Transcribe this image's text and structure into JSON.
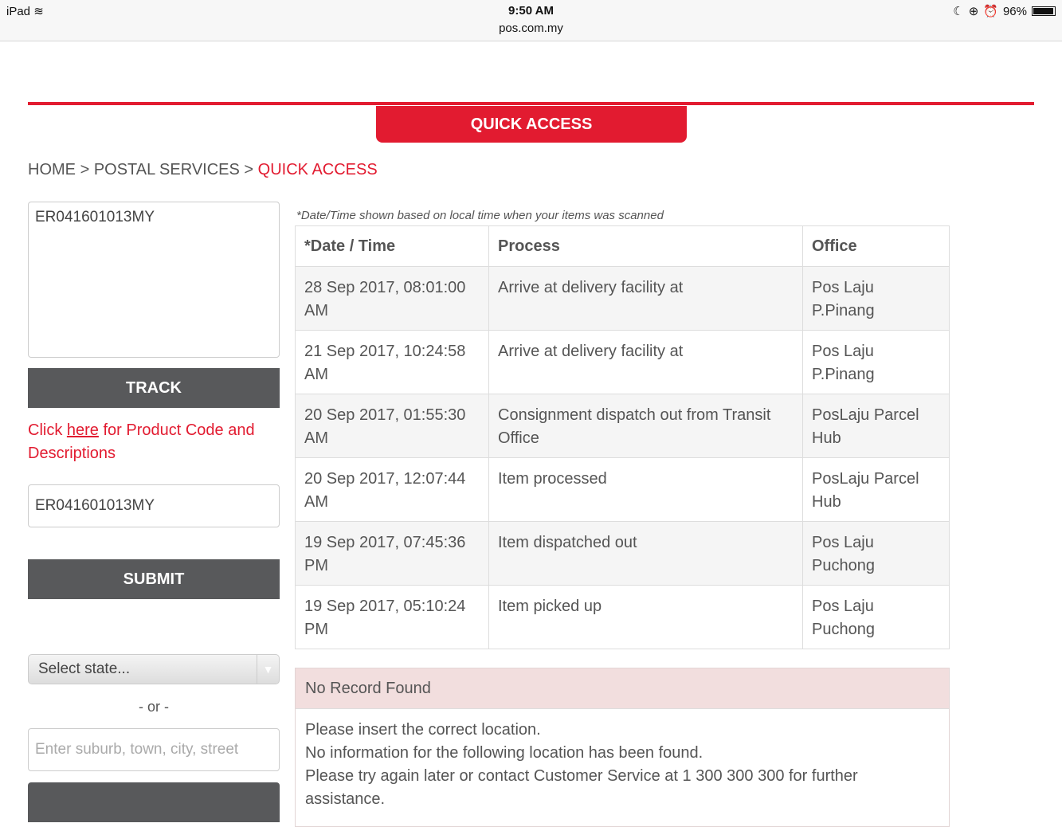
{
  "status_bar": {
    "device": "iPad",
    "time": "9:50 AM",
    "url": "pos.com.my",
    "battery": "96%",
    "battery_level": 0.96
  },
  "banner": {
    "title": "QUICK ACCESS"
  },
  "breadcrumb": {
    "home": "HOME",
    "sep": ">",
    "section": "POSTAL SERVICES",
    "current": "QUICK ACCESS"
  },
  "track": {
    "textarea_value": "ER041601013MY",
    "button": "TRACK"
  },
  "product_link": {
    "prefix": "Click ",
    "link": "here",
    "suffix": " for Product Code and Descriptions"
  },
  "submit_form": {
    "input_value": "ER041601013MY",
    "button": "SUBMIT"
  },
  "location": {
    "select_placeholder": "Select state...",
    "or": "- or -",
    "input_placeholder": "Enter suburb, town, city, street"
  },
  "results": {
    "note": "*Date/Time shown based on local time when your items was scanned",
    "headers": [
      "*Date / Time",
      "Process",
      "Office"
    ],
    "rows": [
      {
        "date": "28 Sep 2017, 08:01:00 AM",
        "process": "Arrive at delivery facility at",
        "office": "Pos Laju P.Pinang"
      },
      {
        "date": "21 Sep 2017, 10:24:58 AM",
        "process": "Arrive at delivery facility at",
        "office": "Pos Laju P.Pinang"
      },
      {
        "date": "20 Sep 2017, 01:55:30 AM",
        "process": "Consignment dispatch out from Transit Office",
        "office": "PosLaju Parcel Hub"
      },
      {
        "date": "20 Sep 2017, 12:07:44 AM",
        "process": "Item processed",
        "office": "PosLaju Parcel Hub"
      },
      {
        "date": "19 Sep 2017, 07:45:36 PM",
        "process": "Item dispatched out",
        "office": "Pos Laju Puchong"
      },
      {
        "date": "19 Sep 2017, 05:10:24 PM",
        "process": "Item picked up",
        "office": "Pos Laju Puchong"
      }
    ]
  },
  "no_record": {
    "title": "No Record Found",
    "lines": [
      "Please insert the correct location.",
      "No information for the following location has been found.",
      "Please try again later or contact Customer Service at 1 300 300 300 for further assistance."
    ]
  },
  "colors": {
    "brand": "#e21b30",
    "button": "#58595b",
    "alert_bg": "#f2dede"
  }
}
